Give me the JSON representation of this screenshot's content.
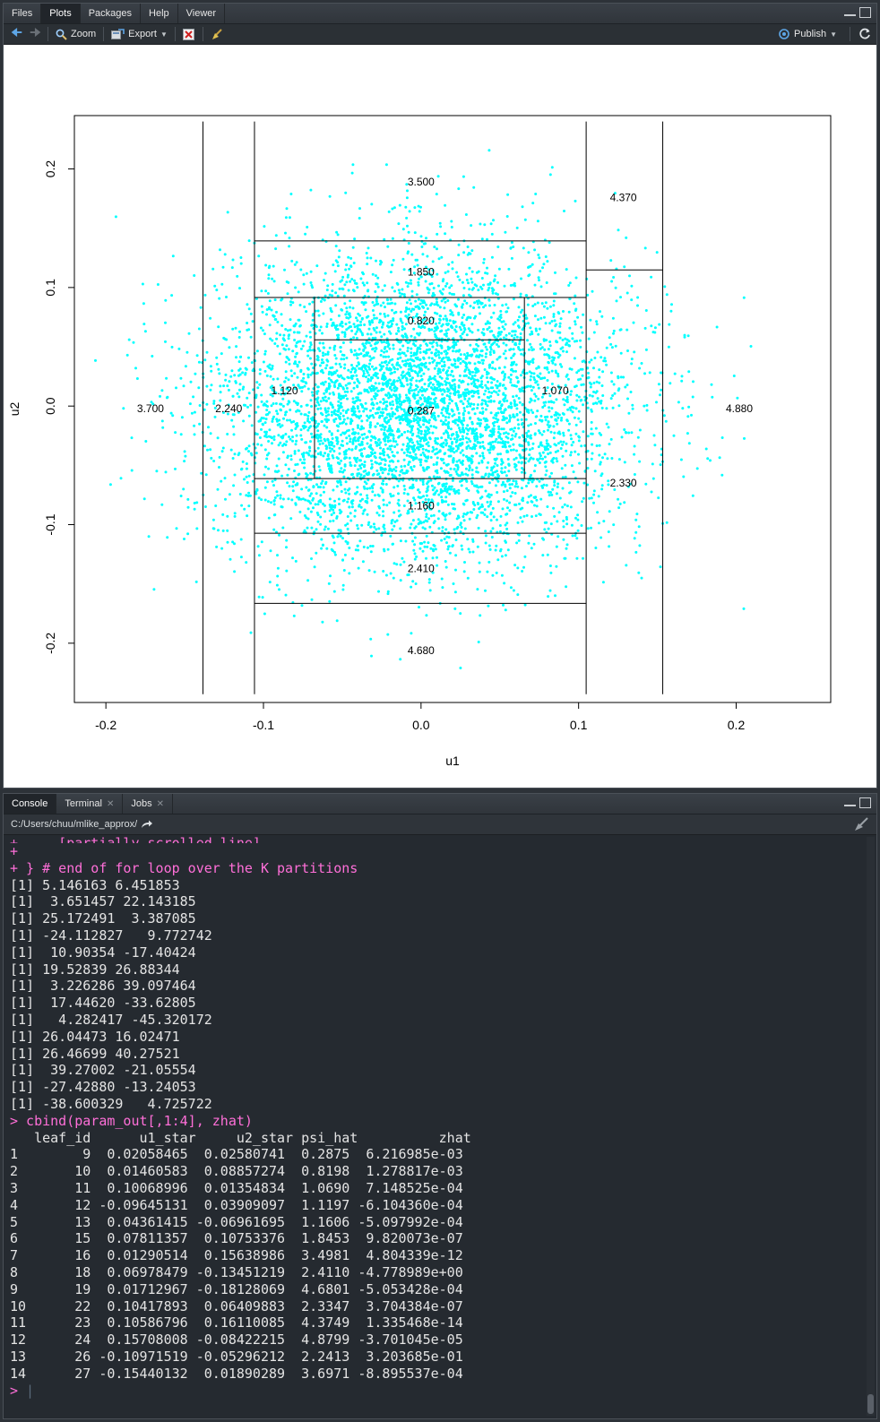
{
  "plots_pane": {
    "tabs": [
      {
        "label": "Files",
        "active": false
      },
      {
        "label": "Plots",
        "active": true
      },
      {
        "label": "Packages",
        "active": false
      },
      {
        "label": "Help",
        "active": false
      },
      {
        "label": "Viewer",
        "active": false
      }
    ],
    "toolbar": {
      "zoom_label": "Zoom",
      "export_label": "Export",
      "publish_label": "Publish"
    }
  },
  "chart_data": {
    "type": "scatter",
    "title": "",
    "xlabel": "u1",
    "ylabel": "u2",
    "xlim": [
      -0.22,
      0.26
    ],
    "ylim": [
      -0.25,
      0.245
    ],
    "x_ticks": [
      -0.2,
      -0.1,
      0.0,
      0.1,
      0.2
    ],
    "x_tick_labels": [
      "-0.2",
      "-0.1",
      "0.0",
      "0.1",
      "0.2"
    ],
    "y_ticks": [
      -0.2,
      -0.1,
      0.0,
      0.1,
      0.2
    ],
    "y_tick_labels": [
      "-0.2",
      "-0.1",
      "0.0",
      "0.1",
      "0.2"
    ],
    "point_color": "#00ffff",
    "point_count": 5500,
    "point_sd": [
      0.065,
      0.065
    ],
    "data_range": {
      "u1": [
        -0.207,
        0.241
      ],
      "u2": [
        -0.231,
        0.229
      ]
    },
    "segments": [
      {
        "x1": -0.1384,
        "y1": -0.243,
        "x2": -0.1384,
        "y2": 0.24
      },
      {
        "x1": -0.1057,
        "y1": -0.243,
        "x2": -0.1057,
        "y2": 0.24
      },
      {
        "x1": 0.1048,
        "y1": -0.243,
        "x2": 0.1048,
        "y2": 0.24
      },
      {
        "x1": 0.1534,
        "y1": -0.243,
        "x2": 0.1534,
        "y2": 0.24
      },
      {
        "x1": -0.1057,
        "y1": 0.1393,
        "x2": 0.1048,
        "y2": 0.1393
      },
      {
        "x1": -0.1057,
        "y1": 0.0916,
        "x2": 0.1048,
        "y2": 0.0916
      },
      {
        "x1": -0.1057,
        "y1": -0.0612,
        "x2": 0.1048,
        "y2": -0.0612
      },
      {
        "x1": -0.1057,
        "y1": -0.1073,
        "x2": 0.1048,
        "y2": -0.1073
      },
      {
        "x1": -0.1057,
        "y1": -0.1664,
        "x2": 0.1048,
        "y2": -0.1664
      },
      {
        "x1": -0.0676,
        "y1": 0.0916,
        "x2": -0.0676,
        "y2": -0.0612
      },
      {
        "x1": 0.0656,
        "y1": 0.0916,
        "x2": 0.0656,
        "y2": -0.0612
      },
      {
        "x1": -0.0676,
        "y1": 0.0559,
        "x2": 0.0656,
        "y2": 0.0559
      },
      {
        "x1": 0.1048,
        "y1": 0.1148,
        "x2": 0.1534,
        "y2": 0.1148
      }
    ],
    "annotations": [
      {
        "x": 0.0,
        "y": 0.189,
        "text": "3.500"
      },
      {
        "x": 0.1284,
        "y": 0.176,
        "text": "4.370"
      },
      {
        "x": 0.0,
        "y": 0.113,
        "text": "1.850"
      },
      {
        "x": 0.0,
        "y": 0.072,
        "text": "0.820"
      },
      {
        "x": -0.0866,
        "y": 0.013,
        "text": "1.120"
      },
      {
        "x": 0.0852,
        "y": 0.013,
        "text": "1.070"
      },
      {
        "x": 0.0,
        "y": -0.004,
        "text": "0.287"
      },
      {
        "x": -0.1717,
        "y": -0.002,
        "text": "3.700"
      },
      {
        "x": -0.122,
        "y": -0.002,
        "text": "2.240"
      },
      {
        "x": 0.202,
        "y": -0.002,
        "text": "4.880"
      },
      {
        "x": 0.1284,
        "y": -0.065,
        "text": "2.330"
      },
      {
        "x": 0.0,
        "y": -0.084,
        "text": "1.160"
      },
      {
        "x": 0.0,
        "y": -0.137,
        "text": "2.410"
      },
      {
        "x": 0.0,
        "y": -0.206,
        "text": "4.680"
      }
    ]
  },
  "console_pane": {
    "tabs": [
      {
        "label": "Console",
        "active": true,
        "closable": false
      },
      {
        "label": "Terminal",
        "active": false,
        "closable": true
      },
      {
        "label": "Jobs",
        "active": false,
        "closable": true
      }
    ],
    "path": "C:/Users/chuu/mlike_approx/",
    "partial_line": "+ ... [partially scrolled line] ...",
    "lines": [
      {
        "text": "+",
        "type": "cmd"
      },
      {
        "text": "+ } # end of for loop over the K partitions",
        "type": "cmd"
      },
      {
        "text": "[1] 5.146163 6.451853",
        "type": "out"
      },
      {
        "text": "[1]  3.651457 22.143185",
        "type": "out"
      },
      {
        "text": "[1] 25.172491  3.387085",
        "type": "out"
      },
      {
        "text": "[1] -24.112827   9.772742",
        "type": "out"
      },
      {
        "text": "[1]  10.90354 -17.40424",
        "type": "out"
      },
      {
        "text": "[1] 19.52839 26.88344",
        "type": "out"
      },
      {
        "text": "[1]  3.226286 39.097464",
        "type": "out"
      },
      {
        "text": "[1]  17.44620 -33.62805",
        "type": "out"
      },
      {
        "text": "[1]   4.282417 -45.320172",
        "type": "out"
      },
      {
        "text": "[1] 26.04473 16.02471",
        "type": "out"
      },
      {
        "text": "[1] 26.46699 40.27521",
        "type": "out"
      },
      {
        "text": "[1]  39.27002 -21.05554",
        "type": "out"
      },
      {
        "text": "[1] -27.42880 -13.24053",
        "type": "out"
      },
      {
        "text": "[1] -38.600329   4.725722",
        "type": "out"
      },
      {
        "text": "> cbind(param_out[,1:4], zhat)",
        "type": "cmd"
      },
      {
        "text": "   leaf_id      u1_star     u2_star psi_hat          zhat",
        "type": "out"
      },
      {
        "text": "1        9  0.02058465  0.02580741  0.2875  6.216985e-03",
        "type": "out"
      },
      {
        "text": "2       10  0.01460583  0.08857274  0.8198  1.278817e-03",
        "type": "out"
      },
      {
        "text": "3       11  0.10068996  0.01354834  1.0690  7.148525e-04",
        "type": "out"
      },
      {
        "text": "4       12 -0.09645131  0.03909097  1.1197 -6.104360e-04",
        "type": "out"
      },
      {
        "text": "5       13  0.04361415 -0.06961695  1.1606 -5.097992e-04",
        "type": "out"
      },
      {
        "text": "6       15  0.07811357  0.10753376  1.8453  9.820073e-07",
        "type": "out"
      },
      {
        "text": "7       16  0.01290514  0.15638986  3.4981  4.804339e-12",
        "type": "out"
      },
      {
        "text": "8       18  0.06978479 -0.13451219  2.4110 -4.778989e+00",
        "type": "out"
      },
      {
        "text": "9       19  0.01712967 -0.18128069  4.6801 -5.053428e-04",
        "type": "out"
      },
      {
        "text": "10      22  0.10417893  0.06409883  2.3347  3.704384e-07",
        "type": "out"
      },
      {
        "text": "11      23  0.10586796  0.16110085  4.3749  1.335468e-14",
        "type": "out"
      },
      {
        "text": "12      24  0.15708008 -0.08422215  4.8799 -3.701045e-05",
        "type": "out"
      },
      {
        "text": "13      26 -0.10971519 -0.05296212  2.2413  3.203685e-01",
        "type": "out"
      },
      {
        "text": "14      27 -0.15440132  0.01890289  3.6971 -8.895537e-04",
        "type": "out"
      }
    ],
    "prompt": ">"
  },
  "colors": {
    "accent": "#5ea6e6",
    "command": "#ff6fd8",
    "points": "#00ffff",
    "console_bg": "#252a30"
  }
}
